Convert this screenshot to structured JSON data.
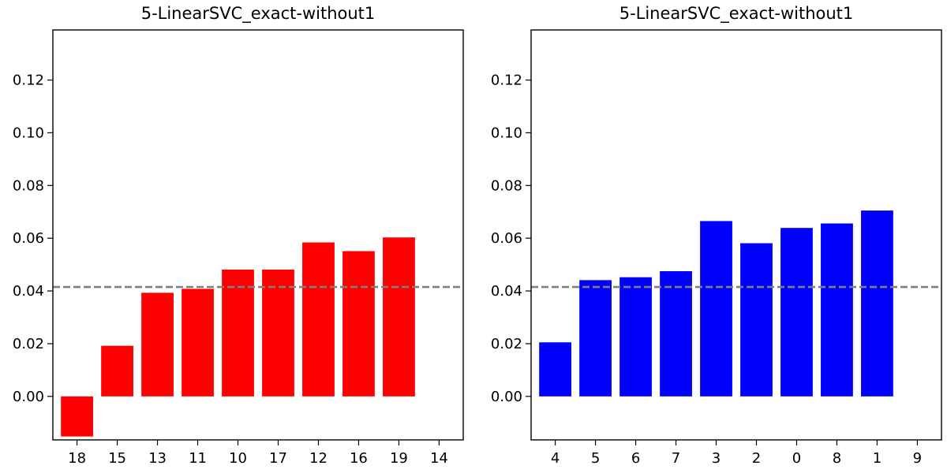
{
  "chart_data": [
    {
      "type": "bar",
      "title": "5-LinearSVC_exact-without1",
      "xlabel": "",
      "ylabel": "",
      "categories": [
        "18",
        "15",
        "13",
        "11",
        "10",
        "17",
        "12",
        "16",
        "19",
        "14"
      ],
      "values": [
        -0.0152,
        0.0192,
        0.0393,
        0.0408,
        0.0481,
        0.0481,
        0.0584,
        0.0551,
        0.0603,
        null
      ],
      "bar_color": "#ff0000",
      "reference_line": 0.0415,
      "reference_line_color": "#808080",
      "ylim": [
        -0.0165,
        0.139
      ],
      "yticks": [
        "0.00",
        "0.02",
        "0.04",
        "0.06",
        "0.08",
        "0.10",
        "0.12"
      ],
      "grid": false,
      "legend": "none"
    },
    {
      "type": "bar",
      "title": "5-LinearSVC_exact-without1",
      "xlabel": "",
      "ylabel": "",
      "categories": [
        "4",
        "5",
        "6",
        "7",
        "3",
        "2",
        "0",
        "8",
        "1",
        "9"
      ],
      "values": [
        0.0205,
        0.0441,
        0.0452,
        0.0475,
        0.0665,
        0.0581,
        0.0639,
        0.0656,
        0.0705,
        null
      ],
      "bar_color": "#0000ff",
      "reference_line": 0.0415,
      "reference_line_color": "#808080",
      "ylim": [
        -0.0165,
        0.139
      ],
      "yticks": [
        "0.00",
        "0.02",
        "0.04",
        "0.06",
        "0.08",
        "0.10",
        "0.12"
      ],
      "grid": false,
      "legend": "none"
    }
  ]
}
